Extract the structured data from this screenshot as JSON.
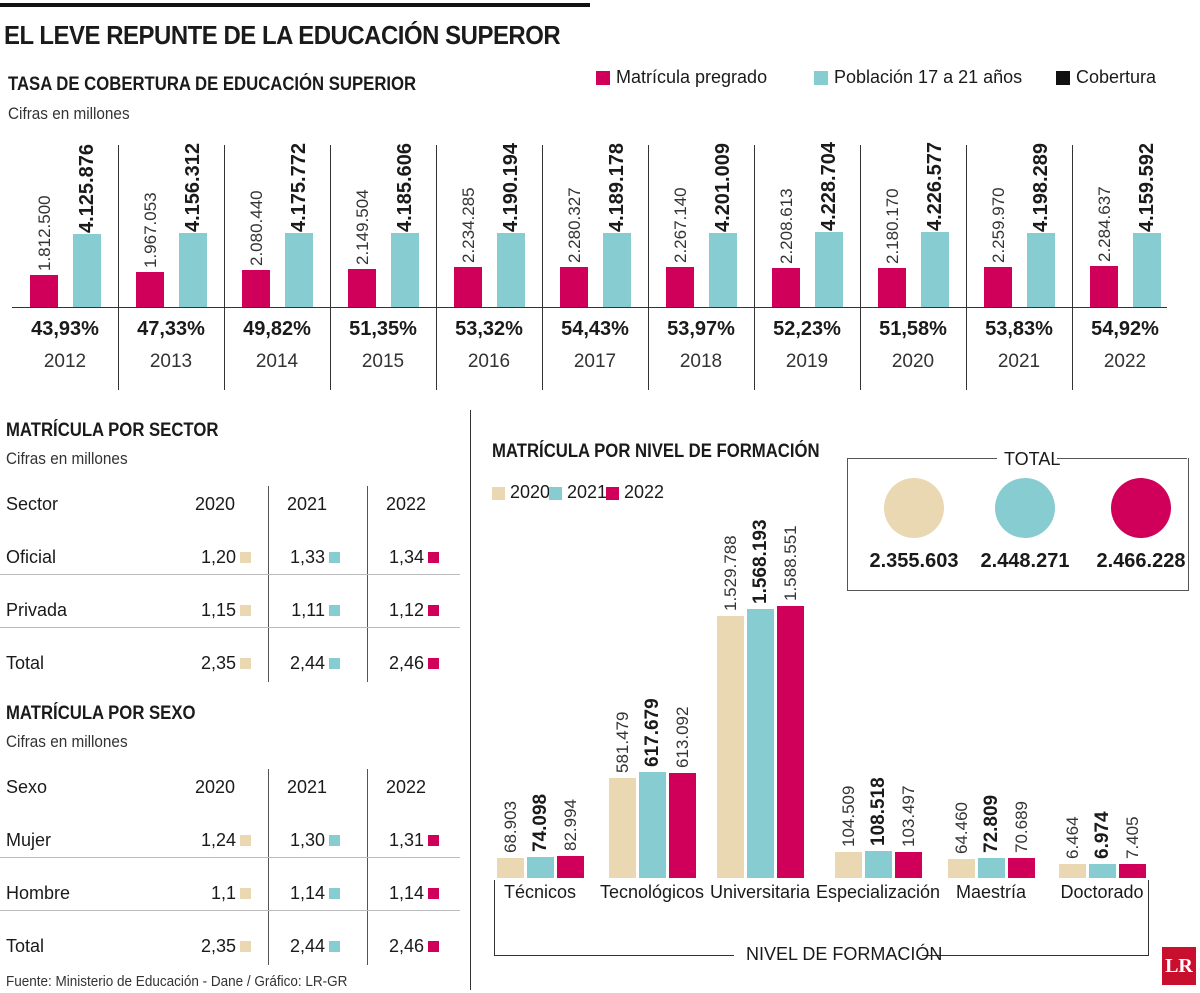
{
  "title": "EL LEVE REPUNTE DE LA EDUCACIÓN SUPEROR",
  "colors": {
    "matricula": "#D0005A",
    "poblacion": "#86CCD0",
    "cobertura": "#111111",
    "y2020": "#EAD8B3",
    "y2021": "#86CCD0",
    "y2022": "#D0005A"
  },
  "footer": "Fuente: Ministerio de Educación - Dane / Gráfico: LR-GR",
  "logo": "LR",
  "chart_data": [
    {
      "type": "bar",
      "title": "TASA DE COBERTURA DE EDUCACIÓN SUPERIOR",
      "subtitle": "Cifras en millones",
      "categories": [
        "2012",
        "2013",
        "2014",
        "2015",
        "2016",
        "2017",
        "2018",
        "2019",
        "2020",
        "2021",
        "2022"
      ],
      "legend": [
        "Matrícula pregrado",
        "Población 17 a 21 años",
        "Cobertura"
      ],
      "series": [
        {
          "name": "Matrícula pregrado",
          "values": [
            1812500,
            1967053,
            2080440,
            2149504,
            2234285,
            2280327,
            2267140,
            2208613,
            2180170,
            2259970,
            2284637
          ],
          "labels": [
            "1.812.500",
            "1.967.053",
            "2.080.440",
            "2.149.504",
            "2.234.285",
            "2.280.327",
            "2.267.140",
            "2.208.613",
            "2.180.170",
            "2.259.970",
            "2.284.637"
          ]
        },
        {
          "name": "Población 17 a 21 años",
          "values": [
            4125876,
            4156312,
            4175772,
            4185606,
            4190194,
            4189178,
            4201009,
            4228704,
            4226577,
            4198289,
            4159592
          ],
          "labels": [
            "4.125.876",
            "4.156.312",
            "4.175.772",
            "4.185.606",
            "4.190.194",
            "4.189.178",
            "4.201.009",
            "4.228.704",
            "4.226.577",
            "4.198.289",
            "4.159.592"
          ]
        },
        {
          "name": "Cobertura",
          "values": [
            43.93,
            47.33,
            49.82,
            51.35,
            53.32,
            54.43,
            53.97,
            52.23,
            51.58,
            53.83,
            54.92
          ],
          "labels": [
            "43,93%",
            "47,33%",
            "49,82%",
            "51,35%",
            "53,32%",
            "54,43%",
            "53,97%",
            "52,23%",
            "51,58%",
            "53,83%",
            "54,92%"
          ]
        }
      ]
    },
    {
      "type": "table",
      "title": "MATRÍCULA POR SECTOR",
      "subtitle": "Cifras en millones",
      "header": [
        "Sector",
        "2020",
        "2021",
        "2022"
      ],
      "rows": [
        [
          "Oficial",
          "1,20",
          "1,33",
          "1,34"
        ],
        [
          "Privada",
          "1,15",
          "1,11",
          "1,12"
        ],
        [
          "Total",
          "2,35",
          "2,44",
          "2,46"
        ]
      ]
    },
    {
      "type": "table",
      "title": "MATRÍCULA POR SEXO",
      "subtitle": "Cifras en millones",
      "header": [
        "Sexo",
        "2020",
        "2021",
        "2022"
      ],
      "rows": [
        [
          "Mujer",
          "1,24",
          "1,30",
          "1,31"
        ],
        [
          "Hombre",
          "1,1",
          "1,14",
          "1,14"
        ],
        [
          "Total",
          "2,35",
          "2,44",
          "2,46"
        ]
      ]
    },
    {
      "type": "bar",
      "title": "MATRÍCULA POR NIVEL DE FORMACIÓN",
      "xlabel": "NIVEL DE FORMACIÓN",
      "categories": [
        "Técnicos",
        "Tecnológicos",
        "Universitaria",
        "Especialización",
        "Maestría",
        "Doctorado"
      ],
      "series": [
        {
          "name": "2020",
          "values": [
            68903,
            581479,
            1529788,
            104509,
            64460,
            6464
          ],
          "labels": [
            "68.903",
            "581.479",
            "1.529.788",
            "104.509",
            "64.460",
            "6.464"
          ]
        },
        {
          "name": "2021",
          "values": [
            74098,
            617679,
            1568193,
            108518,
            72809,
            6974
          ],
          "labels": [
            "74.098",
            "617.679",
            "1.568.193",
            "108.518",
            "72.809",
            "6.974"
          ]
        },
        {
          "name": "2022",
          "values": [
            82994,
            613092,
            1588551,
            103497,
            70689,
            7405
          ],
          "labels": [
            "82.994",
            "613.092",
            "1.588.551",
            "103.497",
            "70.689",
            "7.405"
          ]
        }
      ],
      "totals": {
        "title": "TOTAL",
        "values": [
          "2.355.603",
          "2.448.271",
          "2.466.228"
        ]
      }
    }
  ]
}
